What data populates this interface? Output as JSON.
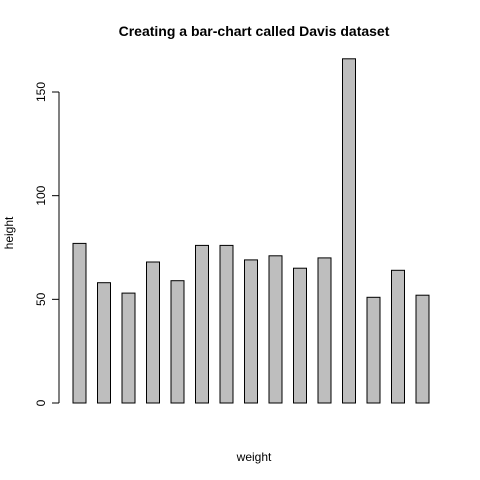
{
  "chart_data": {
    "type": "bar",
    "title": "Creating a bar-chart called Davis dataset",
    "xlabel": "weight",
    "ylabel": "height",
    "ylim": [
      0,
      170
    ],
    "yticks": [
      "0",
      "50",
      "100",
      "150"
    ],
    "values": [
      77,
      58,
      53,
      68,
      59,
      76,
      76,
      69,
      71,
      65,
      70,
      166,
      51,
      64,
      52
    ],
    "bar_fill": "#bebebe",
    "bar_stroke": "#000000",
    "grid": false,
    "legend": "none"
  }
}
